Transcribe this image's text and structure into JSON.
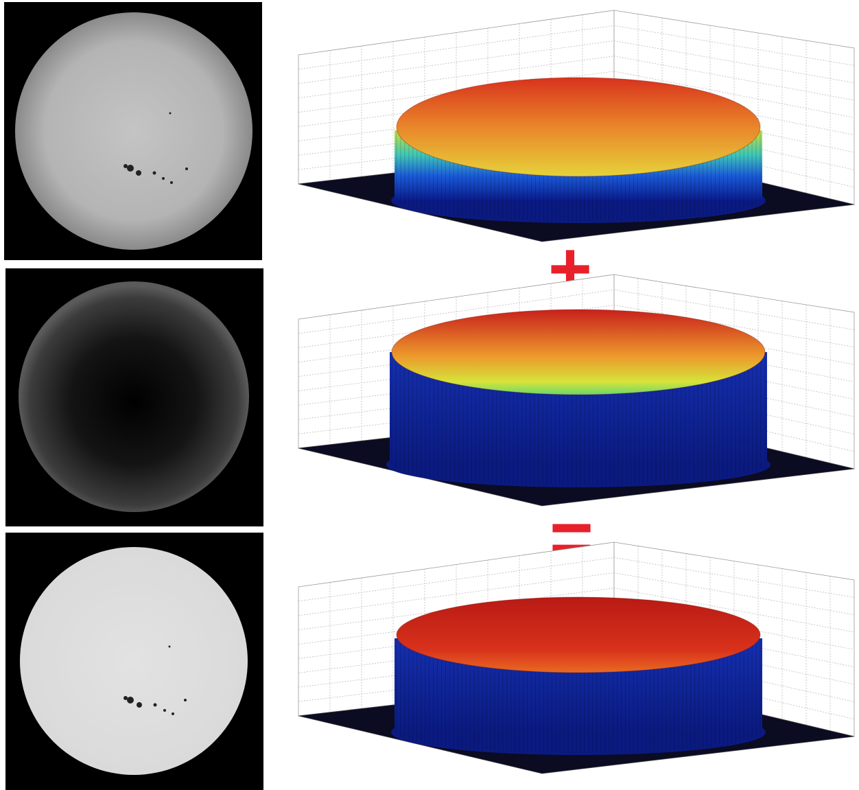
{
  "operators": [
    "+",
    "="
  ]
}
